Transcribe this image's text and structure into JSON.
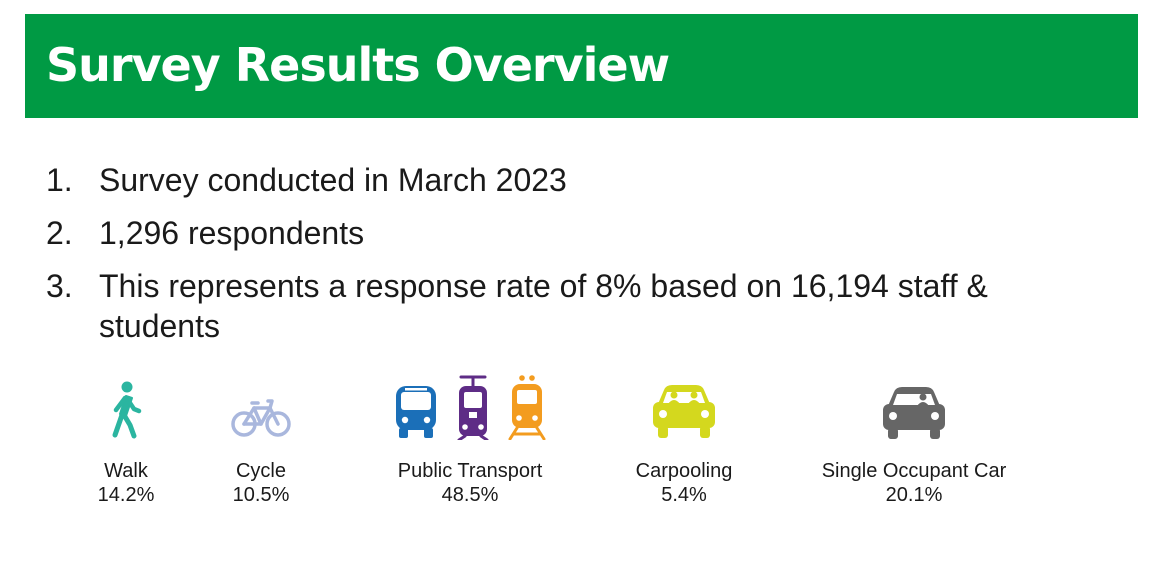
{
  "slide": {
    "title": "Survey Results Overview",
    "colors": {
      "accent": "#009a44",
      "walk": "#2bb5a0",
      "cycle": "#a9b7dd",
      "bus": "#1b6fb8",
      "tram": "#5e2c86",
      "train": "#f39c1f",
      "carpool": "#d4d81e",
      "car": "#666666"
    }
  },
  "points": [
    {
      "num": "1.",
      "text": "Survey conducted in March 2023"
    },
    {
      "num": "2.",
      "text": "1,296 respondents"
    },
    {
      "num": "3.",
      "text": "This represents a response rate of 8% based on 16,194 staff & students"
    }
  ],
  "modes": [
    {
      "label": "Walk",
      "value": "14.2%",
      "icon": "walk-icon"
    },
    {
      "label": "Cycle",
      "value": "10.5%",
      "icon": "bicycle-icon"
    },
    {
      "label": "Public Transport",
      "value": "48.5%",
      "icon": [
        "bus-icon",
        "tram-icon",
        "train-icon"
      ]
    },
    {
      "label": "Carpooling",
      "value": "5.4%",
      "icon": "carpool-car-icon"
    },
    {
      "label": "Single Occupant Car",
      "value": "20.1%",
      "icon": "single-occupant-car-icon"
    }
  ]
}
